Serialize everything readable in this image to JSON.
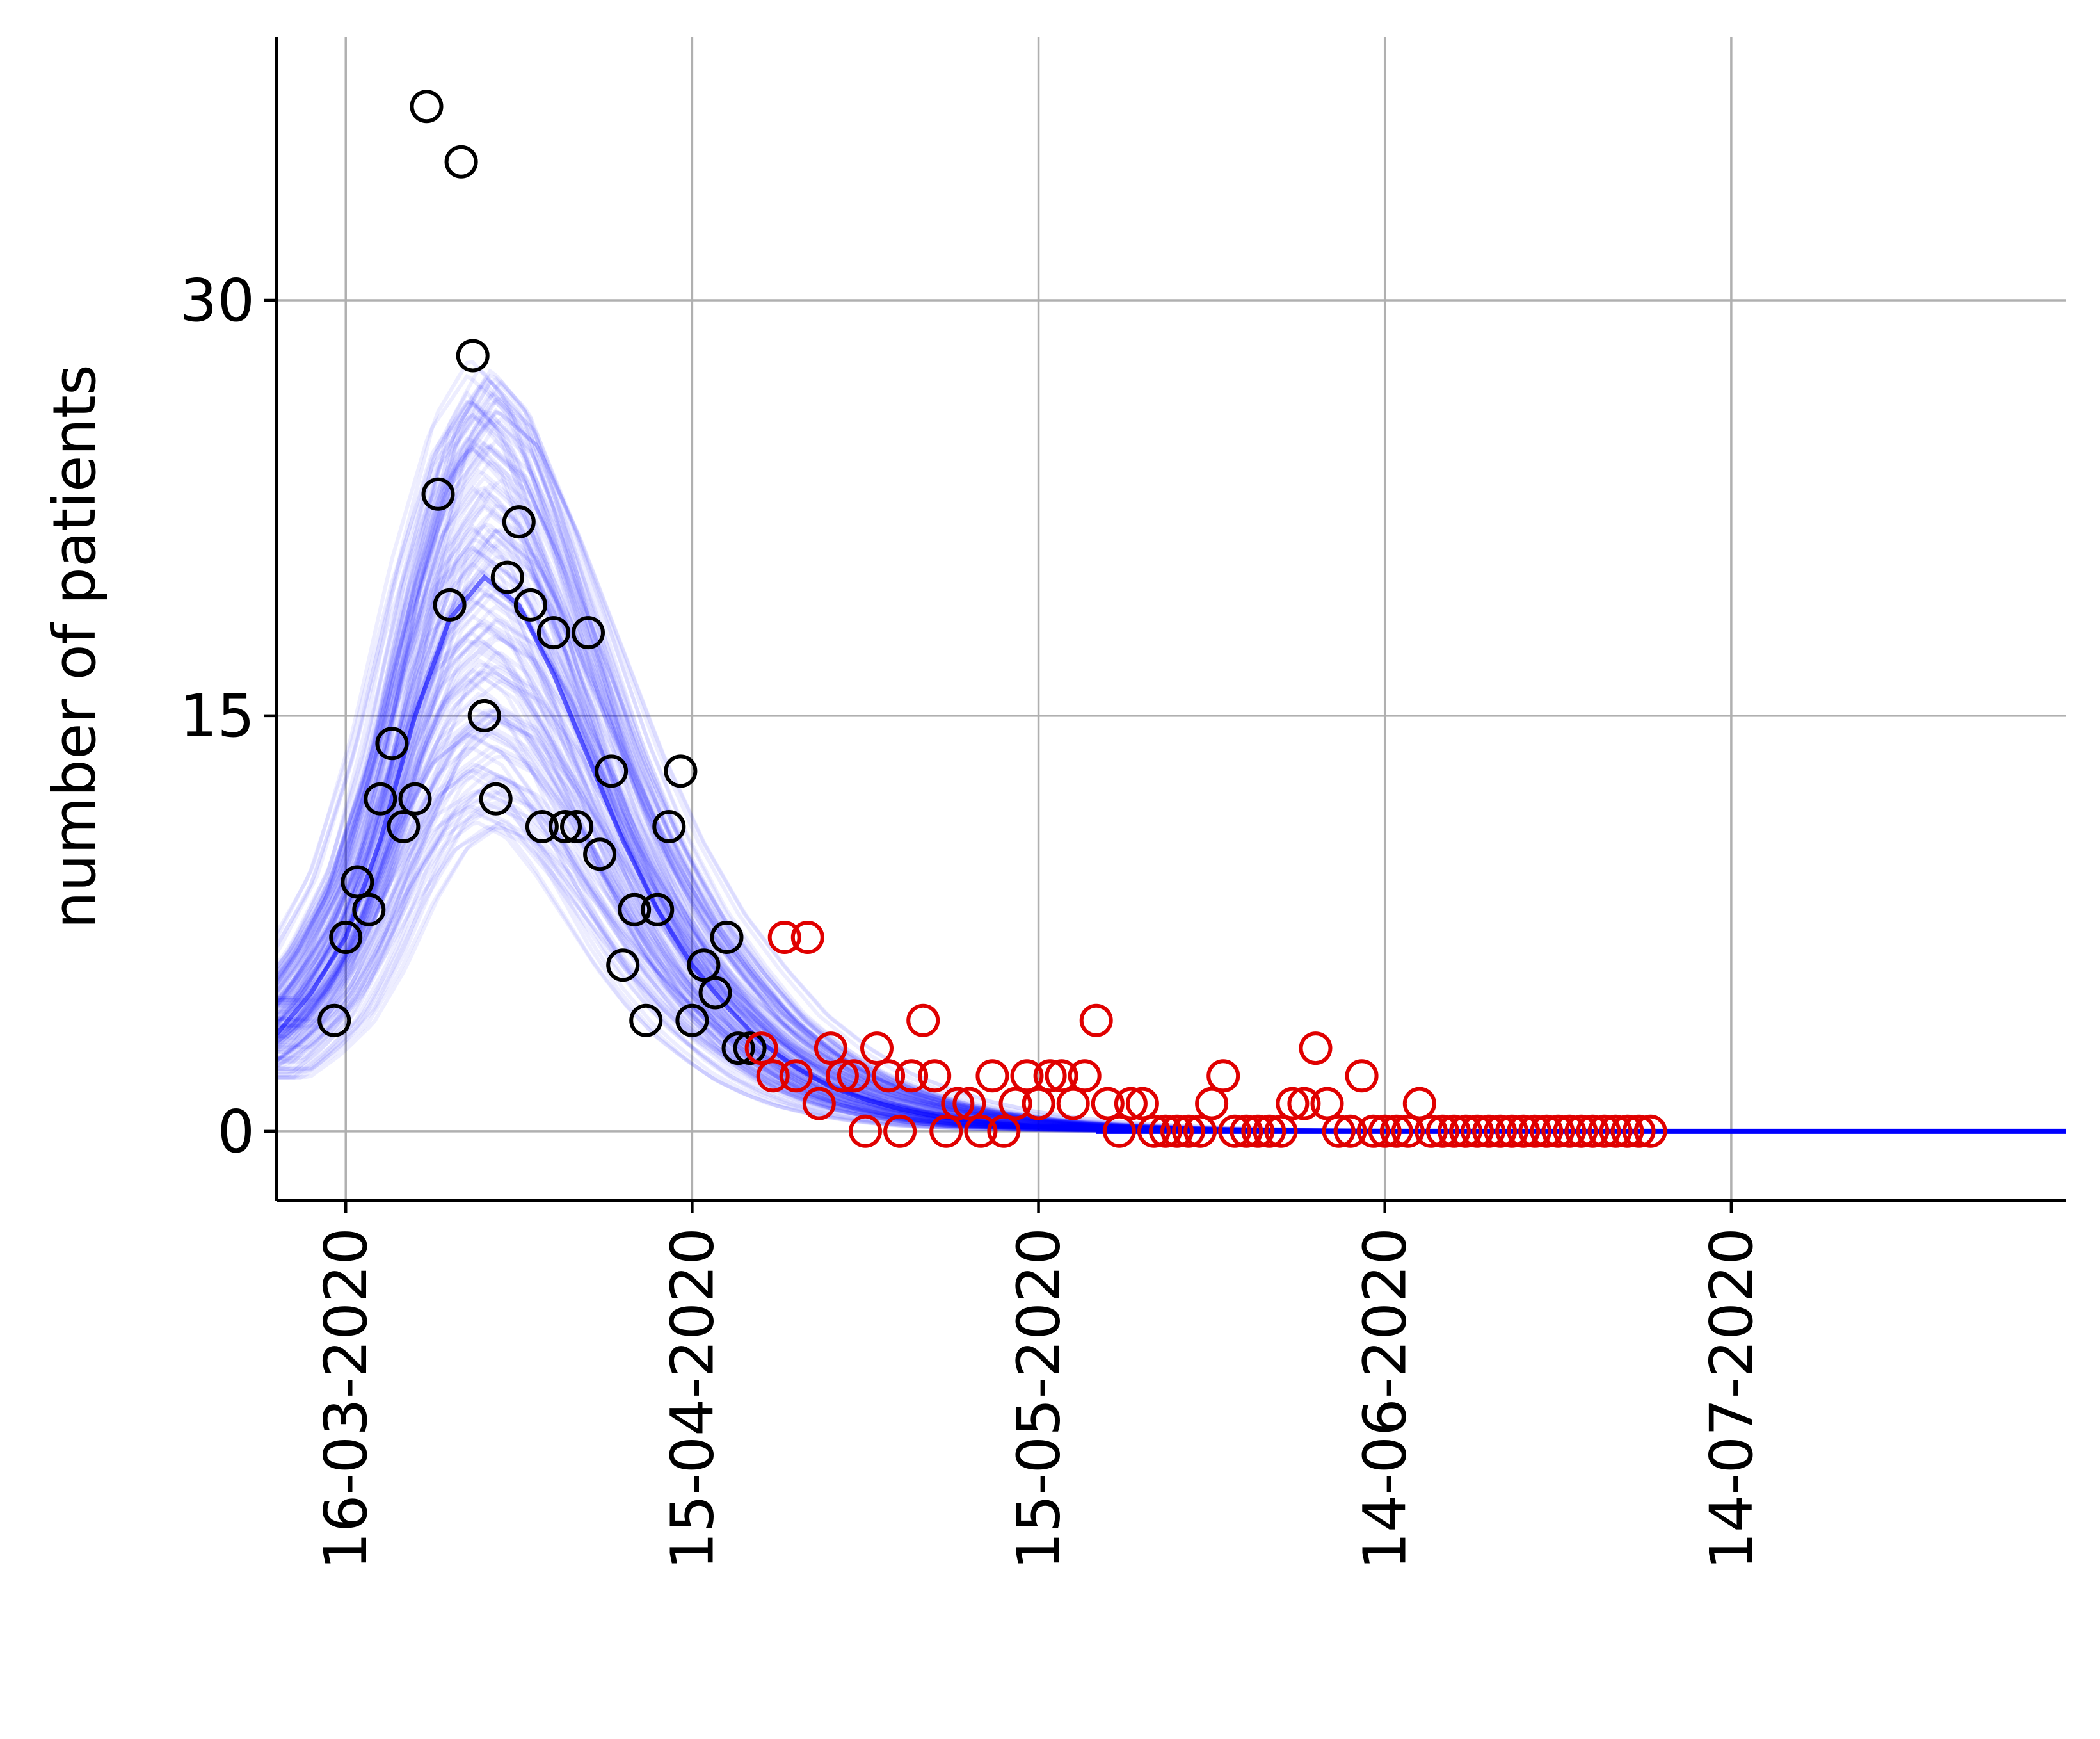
{
  "chart_data": {
    "type": "scatter",
    "title": "",
    "xlabel": "",
    "ylabel": "number of patients",
    "x_axis_type": "date",
    "xlim": [
      "2020-03-10",
      "2020-08-12"
    ],
    "ylim": [
      -2.5,
      39.5
    ],
    "x_ticks": [
      {
        "date": "2020-03-16",
        "label": "16-03-2020"
      },
      {
        "date": "2020-04-15",
        "label": "15-04-2020"
      },
      {
        "date": "2020-05-15",
        "label": "15-05-2020"
      },
      {
        "date": "2020-06-14",
        "label": "14-06-2020"
      },
      {
        "date": "2020-07-14",
        "label": "14-07-2020"
      }
    ],
    "y_ticks": [
      {
        "value": 0,
        "label": "0"
      },
      {
        "value": 15,
        "label": "15"
      },
      {
        "value": 30,
        "label": "30"
      }
    ],
    "grid": true,
    "legend": "none",
    "colors": {
      "observed": "#000000",
      "heldout": "#e00000",
      "fit": "#0000ff"
    },
    "series": [
      {
        "role": "observed",
        "marker": "open-circle",
        "points": [
          [
            "2020-03-15",
            4
          ],
          [
            "2020-03-16",
            7
          ],
          [
            "2020-03-17",
            9
          ],
          [
            "2020-03-18",
            8
          ],
          [
            "2020-03-19",
            12
          ],
          [
            "2020-03-20",
            14
          ],
          [
            "2020-03-21",
            11
          ],
          [
            "2020-03-22",
            12
          ],
          [
            "2020-03-23",
            37
          ],
          [
            "2020-03-24",
            23
          ],
          [
            "2020-03-25",
            19
          ],
          [
            "2020-03-26",
            35
          ],
          [
            "2020-03-27",
            28
          ],
          [
            "2020-03-28",
            15
          ],
          [
            "2020-03-29",
            12
          ],
          [
            "2020-03-30",
            20
          ],
          [
            "2020-03-31",
            22
          ],
          [
            "2020-04-01",
            19
          ],
          [
            "2020-04-02",
            11
          ],
          [
            "2020-04-03",
            18
          ],
          [
            "2020-04-04",
            11
          ],
          [
            "2020-04-05",
            11
          ],
          [
            "2020-04-06",
            18
          ],
          [
            "2020-04-07",
            10
          ],
          [
            "2020-04-08",
            13
          ],
          [
            "2020-04-09",
            6
          ],
          [
            "2020-04-10",
            8
          ],
          [
            "2020-04-11",
            4
          ],
          [
            "2020-04-12",
            8
          ],
          [
            "2020-04-13",
            11
          ],
          [
            "2020-04-14",
            13
          ],
          [
            "2020-04-15",
            4
          ],
          [
            "2020-04-16",
            6
          ],
          [
            "2020-04-17",
            5
          ],
          [
            "2020-04-18",
            7
          ],
          [
            "2020-04-19",
            3
          ],
          [
            "2020-04-20",
            3
          ]
        ]
      },
      {
        "role": "heldout",
        "marker": "open-circle",
        "points": [
          [
            "2020-04-21",
            3
          ],
          [
            "2020-04-22",
            2
          ],
          [
            "2020-04-23",
            7
          ],
          [
            "2020-04-24",
            2
          ],
          [
            "2020-04-25",
            7
          ],
          [
            "2020-04-26",
            1
          ],
          [
            "2020-04-27",
            3
          ],
          [
            "2020-04-28",
            2
          ],
          [
            "2020-04-29",
            2
          ],
          [
            "2020-04-30",
            0
          ],
          [
            "2020-05-01",
            3
          ],
          [
            "2020-05-02",
            2
          ],
          [
            "2020-05-03",
            0
          ],
          [
            "2020-05-04",
            2
          ],
          [
            "2020-05-05",
            4
          ],
          [
            "2020-05-06",
            2
          ],
          [
            "2020-05-07",
            0
          ],
          [
            "2020-05-08",
            1
          ],
          [
            "2020-05-09",
            1
          ],
          [
            "2020-05-10",
            0
          ],
          [
            "2020-05-11",
            2
          ],
          [
            "2020-05-12",
            0
          ],
          [
            "2020-05-13",
            1
          ],
          [
            "2020-05-14",
            2
          ],
          [
            "2020-05-15",
            1
          ],
          [
            "2020-05-16",
            2
          ],
          [
            "2020-05-17",
            2
          ],
          [
            "2020-05-18",
            1
          ],
          [
            "2020-05-19",
            2
          ],
          [
            "2020-05-20",
            4
          ],
          [
            "2020-05-21",
            1
          ],
          [
            "2020-05-22",
            0
          ],
          [
            "2020-05-23",
            1
          ],
          [
            "2020-05-24",
            1
          ],
          [
            "2020-05-25",
            0
          ],
          [
            "2020-05-26",
            0
          ],
          [
            "2020-05-27",
            0
          ],
          [
            "2020-05-28",
            0
          ],
          [
            "2020-05-29",
            0
          ],
          [
            "2020-05-30",
            1
          ],
          [
            "2020-05-31",
            2
          ],
          [
            "2020-06-01",
            0
          ],
          [
            "2020-06-02",
            0
          ],
          [
            "2020-06-03",
            0
          ],
          [
            "2020-06-04",
            0
          ],
          [
            "2020-06-05",
            0
          ],
          [
            "2020-06-06",
            1
          ],
          [
            "2020-06-07",
            1
          ],
          [
            "2020-06-08",
            3
          ],
          [
            "2020-06-09",
            1
          ],
          [
            "2020-06-10",
            0
          ],
          [
            "2020-06-11",
            0
          ],
          [
            "2020-06-12",
            2
          ],
          [
            "2020-06-13",
            0
          ],
          [
            "2020-06-14",
            0
          ],
          [
            "2020-06-15",
            0
          ],
          [
            "2020-06-16",
            0
          ],
          [
            "2020-06-17",
            1
          ],
          [
            "2020-06-18",
            0
          ],
          [
            "2020-06-19",
            0
          ],
          [
            "2020-06-20",
            0
          ],
          [
            "2020-06-21",
            0
          ],
          [
            "2020-06-22",
            0
          ],
          [
            "2020-06-23",
            0
          ],
          [
            "2020-06-24",
            0
          ],
          [
            "2020-06-25",
            0
          ],
          [
            "2020-06-26",
            0
          ],
          [
            "2020-06-27",
            0
          ],
          [
            "2020-06-28",
            0
          ],
          [
            "2020-06-29",
            0
          ],
          [
            "2020-06-30",
            0
          ],
          [
            "2020-07-01",
            0
          ],
          [
            "2020-07-02",
            0
          ],
          [
            "2020-07-03",
            0
          ],
          [
            "2020-07-04",
            0
          ],
          [
            "2020-07-05",
            0
          ],
          [
            "2020-07-06",
            0
          ],
          [
            "2020-07-07",
            0
          ]
        ]
      },
      {
        "role": "fit-ensemble",
        "marker": "line",
        "curve_count": 160,
        "mean_curve": [
          [
            "2020-03-10",
            3.5
          ],
          [
            "2020-03-13",
            5
          ],
          [
            "2020-03-16",
            7
          ],
          [
            "2020-03-19",
            10.5
          ],
          [
            "2020-03-22",
            15
          ],
          [
            "2020-03-25",
            18.5
          ],
          [
            "2020-03-28",
            20
          ],
          [
            "2020-03-31",
            19
          ],
          [
            "2020-04-03",
            16.5
          ],
          [
            "2020-04-06",
            13.5
          ],
          [
            "2020-04-09",
            10.5
          ],
          [
            "2020-04-12",
            8
          ],
          [
            "2020-04-15",
            6
          ],
          [
            "2020-04-18",
            4.5
          ],
          [
            "2020-04-21",
            3.2
          ],
          [
            "2020-04-24",
            2.3
          ],
          [
            "2020-04-27",
            1.6
          ],
          [
            "2020-04-30",
            1.15
          ],
          [
            "2020-05-03",
            0.8
          ],
          [
            "2020-05-06",
            0.55
          ],
          [
            "2020-05-09",
            0.38
          ],
          [
            "2020-05-12",
            0.26
          ],
          [
            "2020-05-15",
            0.18
          ],
          [
            "2020-05-20",
            0.1
          ],
          [
            "2020-05-25",
            0.05
          ],
          [
            "2020-06-01",
            0.02
          ],
          [
            "2020-06-14",
            0.005
          ],
          [
            "2020-07-14",
            0
          ],
          [
            "2020-08-12",
            0
          ]
        ]
      }
    ]
  }
}
